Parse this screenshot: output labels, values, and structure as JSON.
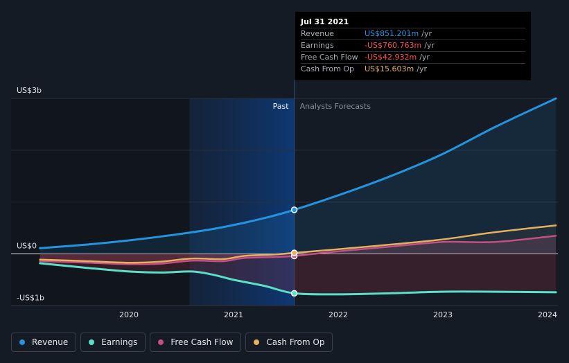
{
  "colors": {
    "revenue": "#2394df",
    "earnings": "#58e0c9",
    "fcf": "#c34f83",
    "cfo": "#e6b060",
    "negative_value": "#ff4d4d",
    "background": "#151b24"
  },
  "tooltip": {
    "date": "Jul 31 2021",
    "rows": [
      {
        "label": "Revenue",
        "value": "US$851.201m",
        "unit": "/yr",
        "color": "#2394df"
      },
      {
        "label": "Earnings",
        "value": "-US$760.763m",
        "unit": "/yr",
        "color": "#ff4d4d"
      },
      {
        "label": "Free Cash Flow",
        "value": "-US$42.932m",
        "unit": "/yr",
        "color": "#ff4d4d"
      },
      {
        "label": "Cash From Op",
        "value": "US$15.603m",
        "unit": "/yr",
        "color": "#e6b060"
      }
    ]
  },
  "legend": [
    {
      "label": "Revenue",
      "color": "#2394df"
    },
    {
      "label": "Earnings",
      "color": "#58e0c9"
    },
    {
      "label": "Free Cash Flow",
      "color": "#c34f83"
    },
    {
      "label": "Cash From Op",
      "color": "#e6b060"
    }
  ],
  "chart_data": {
    "type": "line",
    "title": "",
    "xlabel": "",
    "ylabel": "",
    "units": "USD billions",
    "y_tick_labels": [
      "US$3b",
      "US$0",
      "-US$1b"
    ],
    "y_ticks": [
      3,
      0,
      -1
    ],
    "ylim": [
      -1,
      3
    ],
    "xlim": [
      2019.15,
      2024.08
    ],
    "x_tick_labels": [
      "2020",
      "2021",
      "2022",
      "2023",
      "2024"
    ],
    "x_ticks": [
      2020,
      2021,
      2022,
      2023,
      2024
    ],
    "grid": true,
    "region_labels": {
      "past": "Past",
      "forecast": "Analysts Forecasts"
    },
    "past_highlight_start": 2020.58,
    "divider_x": 2021.58,
    "series": [
      {
        "name": "Revenue",
        "key": "revenue",
        "x": [
          2019.15,
          2019.6,
          2020.0,
          2020.4,
          2020.8,
          2021.1,
          2021.35,
          2021.58,
          2022.0,
          2022.5,
          2023.0,
          2023.5,
          2024.08
        ],
        "y": [
          0.11,
          0.18,
          0.26,
          0.36,
          0.48,
          0.6,
          0.72,
          0.85,
          1.13,
          1.5,
          1.93,
          2.45,
          3.0
        ]
      },
      {
        "name": "Earnings",
        "key": "earnings",
        "x": [
          2019.15,
          2019.6,
          2020.0,
          2020.3,
          2020.6,
          2020.8,
          2021.0,
          2021.3,
          2021.58,
          2022.0,
          2022.5,
          2023.0,
          2023.5,
          2024.08
        ],
        "y": [
          -0.18,
          -0.27,
          -0.34,
          -0.36,
          -0.34,
          -0.4,
          -0.5,
          -0.62,
          -0.76,
          -0.78,
          -0.76,
          -0.73,
          -0.73,
          -0.74
        ]
      },
      {
        "name": "Free Cash Flow",
        "key": "fcf",
        "x": [
          2019.15,
          2019.6,
          2020.0,
          2020.3,
          2020.6,
          2020.9,
          2021.1,
          2021.4,
          2021.58,
          2022.0,
          2022.5,
          2023.0,
          2023.5,
          2024.08
        ],
        "y": [
          -0.14,
          -0.17,
          -0.2,
          -0.19,
          -0.13,
          -0.14,
          -0.08,
          -0.06,
          -0.04,
          0.05,
          0.14,
          0.23,
          0.23,
          0.35
        ]
      },
      {
        "name": "Cash From Op",
        "key": "cfo",
        "x": [
          2019.15,
          2019.6,
          2020.0,
          2020.3,
          2020.6,
          2020.9,
          2021.1,
          2021.4,
          2021.58,
          2022.0,
          2022.5,
          2023.0,
          2023.5,
          2024.08
        ],
        "y": [
          -0.11,
          -0.14,
          -0.17,
          -0.15,
          -0.09,
          -0.1,
          -0.04,
          -0.01,
          0.02,
          0.09,
          0.18,
          0.28,
          0.42,
          0.55
        ]
      }
    ],
    "highlight_points": [
      {
        "series": "revenue",
        "x": 2021.58,
        "y": 0.85
      },
      {
        "series": "earnings",
        "x": 2021.58,
        "y": -0.76
      },
      {
        "series": "fcf",
        "x": 2021.58,
        "y": -0.04
      },
      {
        "series": "cfo",
        "x": 2021.58,
        "y": 0.02
      }
    ]
  }
}
